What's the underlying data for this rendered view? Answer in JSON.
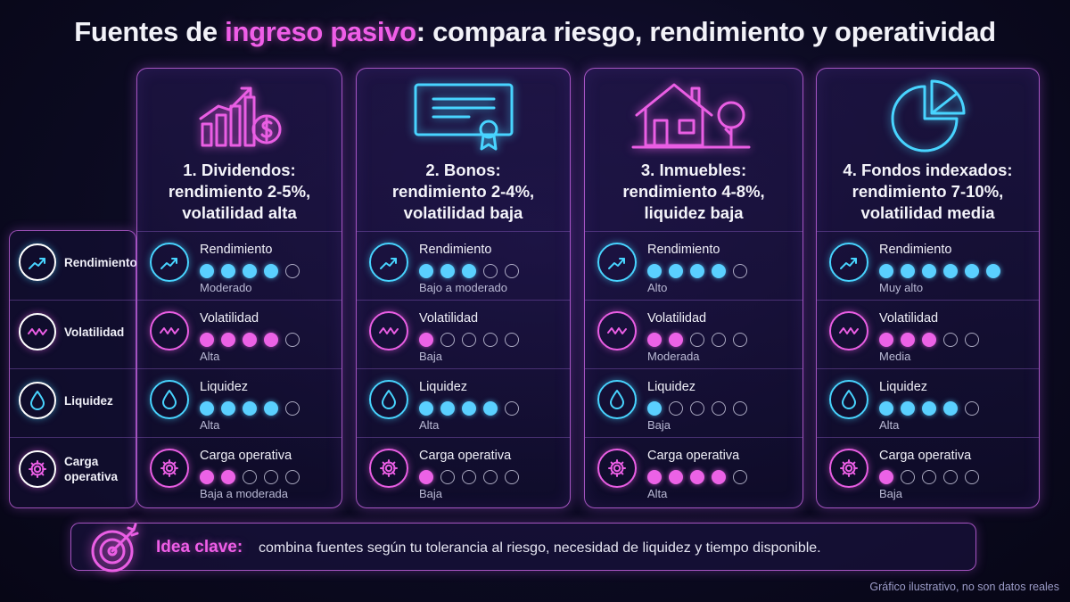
{
  "title": {
    "prefix": "Fuentes de ",
    "highlight": "ingreso pasivo",
    "suffix": ": compara riesgo, rendimiento y operatividad"
  },
  "legend": [
    {
      "label": "Rendimiento",
      "icon": "trend-up-icon",
      "color": "cyan"
    },
    {
      "label": "Volatilidad",
      "icon": "wave-icon",
      "color": "pink"
    },
    {
      "label": "Liquidez",
      "icon": "drop-icon",
      "color": "cyan"
    },
    {
      "label": "Carga operativa",
      "icon": "gear-icon",
      "color": "pink"
    }
  ],
  "cards": [
    {
      "title_lines": [
        "1. Dividendos:",
        "rendimiento 2-5%,",
        "volatilidad alta"
      ],
      "icon": "bar-chart-dollar-icon",
      "metrics": [
        {
          "label": "Rendimiento",
          "filled": 4,
          "total": 5,
          "level": "Moderado",
          "color": "cyan"
        },
        {
          "label": "Volatilidad",
          "filled": 4,
          "total": 5,
          "level": "Alta",
          "color": "pink"
        },
        {
          "label": "Liquidez",
          "filled": 4,
          "total": 5,
          "level": "Alta",
          "color": "cyan"
        },
        {
          "label": "Carga operativa",
          "filled": 2,
          "total": 5,
          "level": "Baja a moderada",
          "color": "pink"
        }
      ]
    },
    {
      "title_lines": [
        "2. Bonos:",
        "rendimiento 2-4%,",
        "volatilidad baja"
      ],
      "icon": "certificate-icon",
      "metrics": [
        {
          "label": "Rendimiento",
          "filled": 3,
          "total": 5,
          "level": "Bajo a moderado",
          "color": "cyan"
        },
        {
          "label": "Volatilidad",
          "filled": 1,
          "total": 5,
          "level": "Baja",
          "color": "pink"
        },
        {
          "label": "Liquidez",
          "filled": 4,
          "total": 5,
          "level": "Alta",
          "color": "cyan"
        },
        {
          "label": "Carga operativa",
          "filled": 1,
          "total": 5,
          "level": "Baja",
          "color": "pink"
        }
      ]
    },
    {
      "title_lines": [
        "3. Inmuebles:",
        "rendimiento 4-8%,",
        "liquidez baja"
      ],
      "icon": "house-icon",
      "metrics": [
        {
          "label": "Rendimiento",
          "filled": 4,
          "total": 5,
          "level": "Alto",
          "color": "cyan"
        },
        {
          "label": "Volatilidad",
          "filled": 2,
          "total": 5,
          "level": "Moderada",
          "color": "pink"
        },
        {
          "label": "Liquidez",
          "filled": 1,
          "total": 5,
          "level": "Baja",
          "color": "cyan"
        },
        {
          "label": "Carga operativa",
          "filled": 4,
          "total": 5,
          "level": "Alta",
          "color": "pink"
        }
      ]
    },
    {
      "title_lines": [
        "4. Fondos indexados:",
        "rendimiento 7-10%,",
        "volatilidad media"
      ],
      "icon": "pie-chart-icon",
      "metrics": [
        {
          "label": "Rendimiento",
          "filled": 6,
          "total": 6,
          "level": "Muy alto",
          "color": "cyan"
        },
        {
          "label": "Volatilidad",
          "filled": 3,
          "total": 5,
          "level": "Media",
          "color": "pink"
        },
        {
          "label": "Liquidez",
          "filled": 4,
          "total": 5,
          "level": "Alta",
          "color": "cyan"
        },
        {
          "label": "Carga operativa",
          "filled": 1,
          "total": 5,
          "level": "Baja",
          "color": "pink"
        }
      ]
    }
  ],
  "idea": {
    "key": "Idea clave:",
    "text": "combina fuentes según tu tolerancia al riesgo, necesidad de liquidez y tiempo disponible.",
    "icon": "target-icon"
  },
  "footnote": "Gráfico ilustrativo, no son datos reales",
  "colors": {
    "cyan": "#48d4ff",
    "pink": "#ea5ee4",
    "background": "#0c0b22"
  }
}
